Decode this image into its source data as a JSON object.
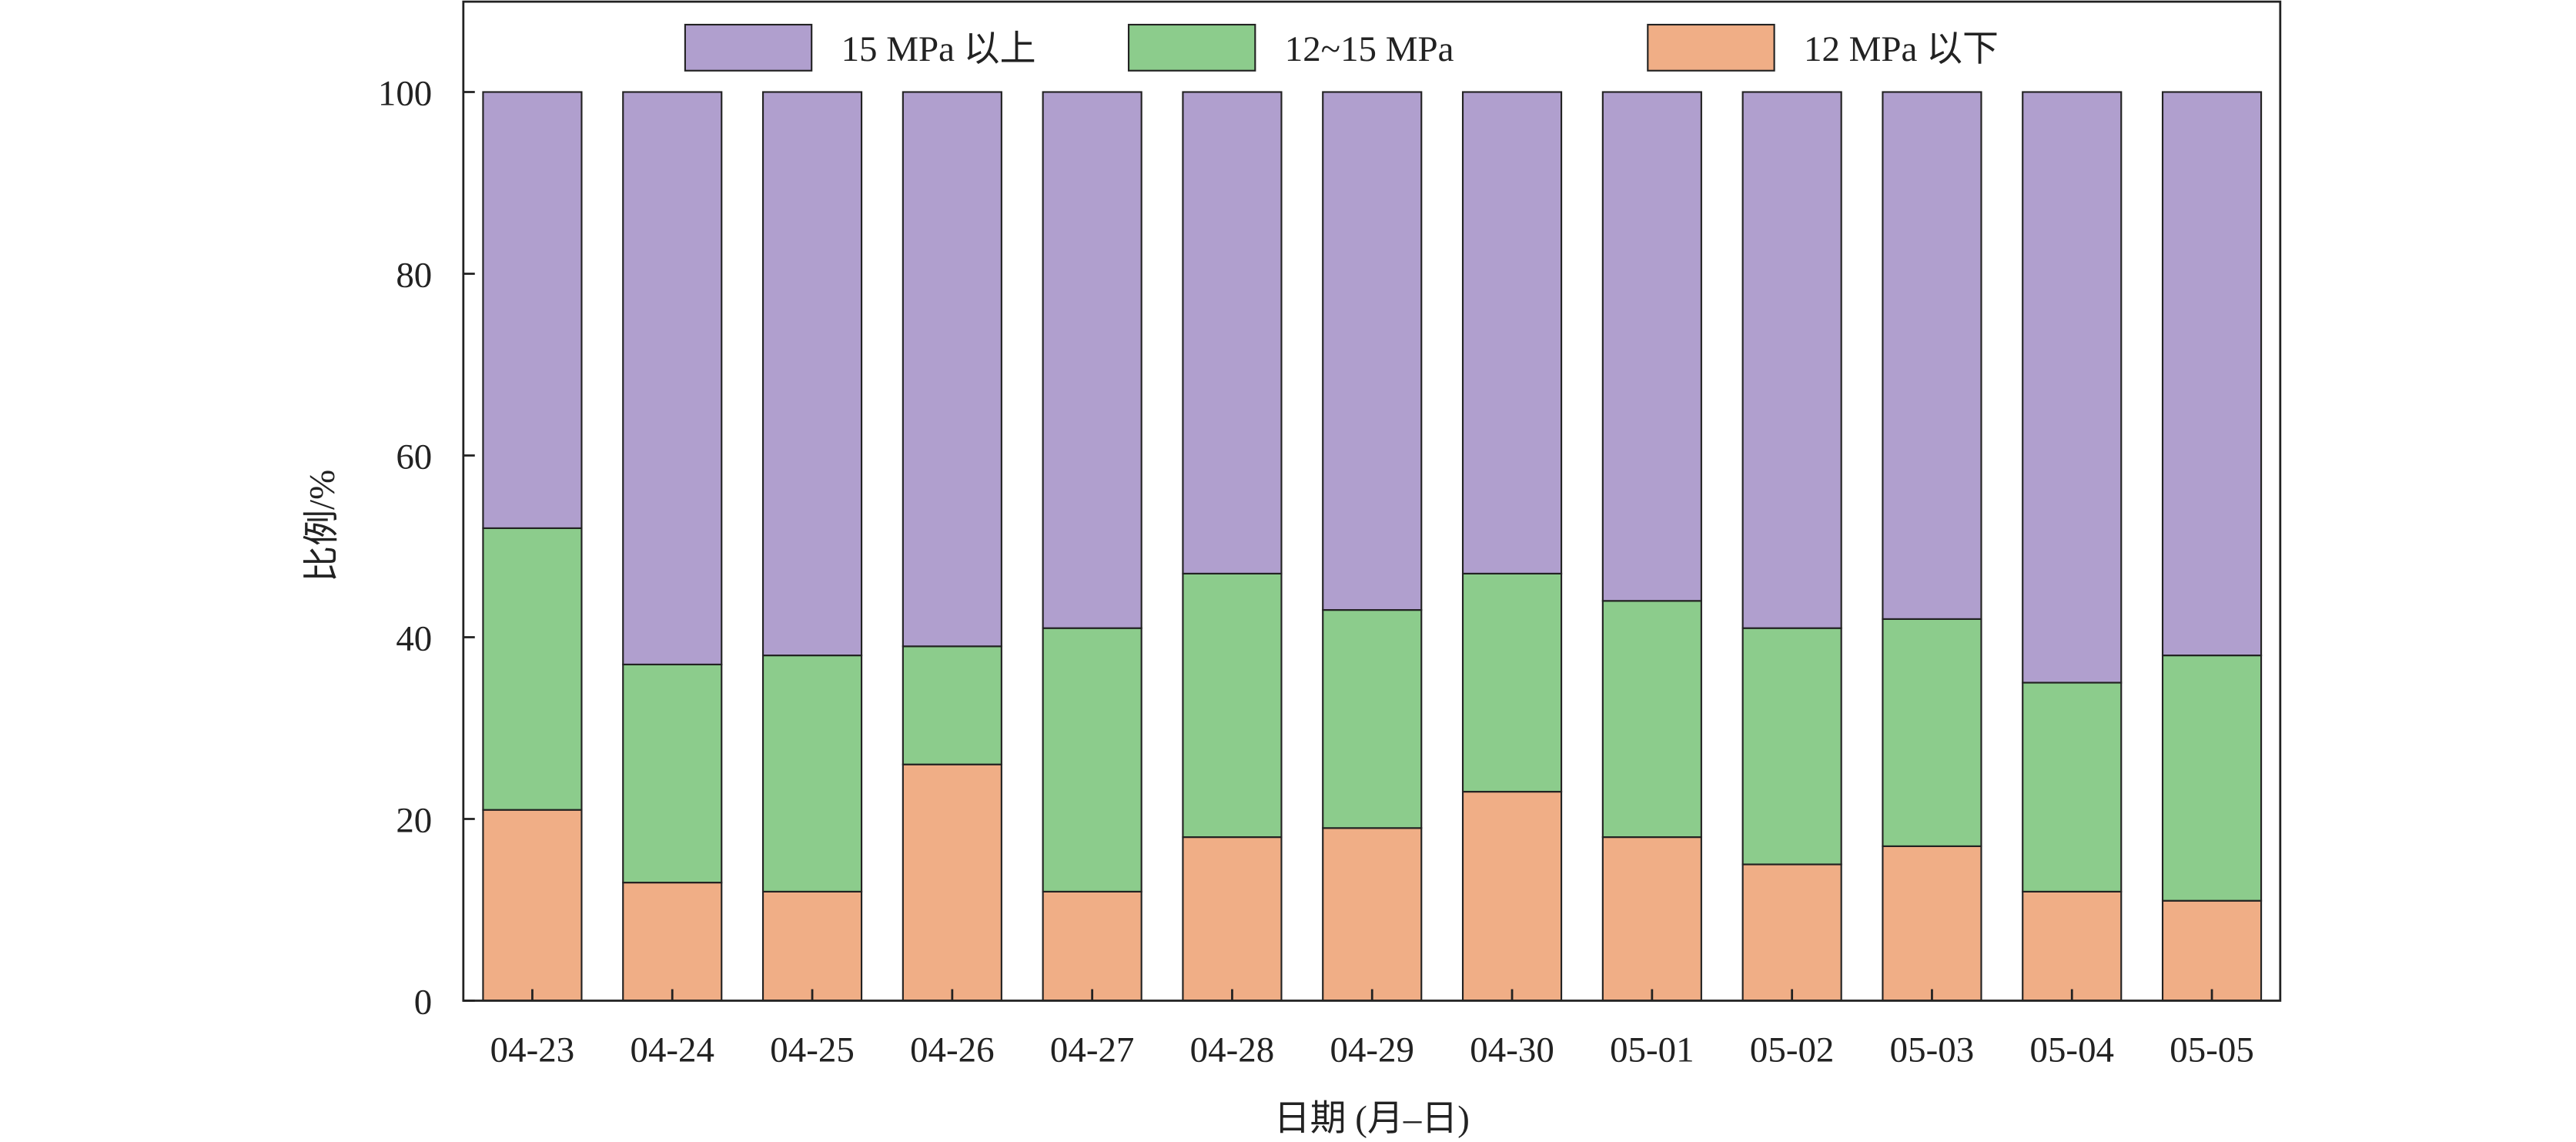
{
  "chart_data": {
    "type": "bar",
    "stacked": true,
    "title": "",
    "xlabel": "日期 (月–日)",
    "ylabel": "比例/%",
    "ylim": [
      0,
      100
    ],
    "yticks": [
      "0",
      "20",
      "40",
      "60",
      "80",
      "100"
    ],
    "legend_position": "top",
    "categories": [
      "04-23",
      "04-24",
      "04-25",
      "04-26",
      "04-27",
      "04-28",
      "04-29",
      "04-30",
      "05-01",
      "05-02",
      "05-03",
      "05-04",
      "05-05"
    ],
    "series": [
      {
        "name": "12 MPa 以下",
        "color": "#f0ae86",
        "values": [
          21,
          13,
          12,
          26,
          12,
          18,
          19,
          23,
          18,
          15,
          17,
          12,
          11
        ]
      },
      {
        "name": "12~15 MPa",
        "color": "#8ccc8c",
        "values": [
          31,
          24,
          26,
          13,
          29,
          29,
          24,
          24,
          26,
          26,
          25,
          23,
          27
        ]
      },
      {
        "name": "15 MPa 以上",
        "color": "#b09fce",
        "values": [
          48,
          63,
          62,
          61,
          59,
          53,
          57,
          53,
          56,
          59,
          58,
          65,
          62
        ]
      }
    ],
    "legend": [
      "15 MPa 以上",
      "12~15 MPa",
      "12 MPa 以下"
    ]
  }
}
